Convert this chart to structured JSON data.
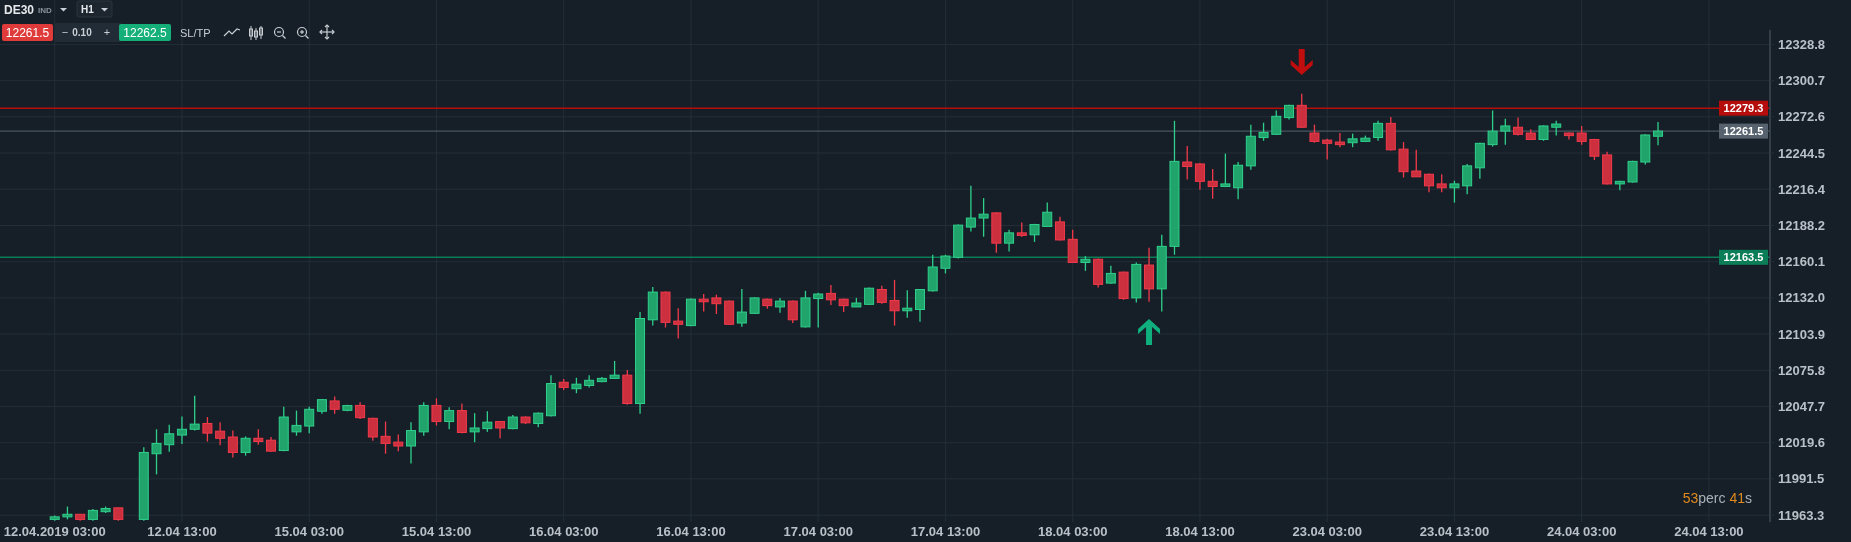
{
  "chart_data": {
    "type": "candlestick",
    "categories": [
      "12.04.2019 03:00",
      null,
      null,
      null,
      null,
      null,
      null,
      null,
      null,
      null,
      "12.04 13:00",
      null,
      null,
      null,
      null,
      null,
      null,
      null,
      null,
      null,
      "15.04 03:00",
      null,
      null,
      null,
      null,
      null,
      null,
      null,
      null,
      null,
      "15.04 13:00",
      null,
      null,
      null,
      null,
      null,
      null,
      null,
      null,
      null,
      "16.04 03:00",
      null,
      null,
      null,
      null,
      null,
      null,
      null,
      null,
      null,
      "16.04 13:00",
      null,
      null,
      null,
      null,
      null,
      null,
      null,
      null,
      null,
      "17.04 03:00",
      null,
      null,
      null,
      null,
      null,
      null,
      null,
      null,
      null,
      "17.04 13:00",
      null,
      null,
      null,
      null,
      null,
      null,
      null,
      null,
      null,
      "18.04 03:00",
      null,
      null,
      null,
      null,
      null,
      null,
      null,
      null,
      null,
      "18.04 13:00",
      null,
      null,
      null,
      null,
      null,
      null,
      null,
      null,
      null,
      "23.04 03:00",
      null,
      null,
      null,
      null,
      null,
      null,
      null,
      null,
      null,
      "23.04 13:00",
      null,
      null,
      null,
      null,
      null,
      null,
      null,
      null,
      null,
      "24.04 03:00",
      null,
      null,
      null,
      null,
      null,
      null,
      null,
      null,
      null,
      "24.04 13:00"
    ],
    "ohlc": [
      [
        11960,
        11963,
        11959,
        11962
      ],
      [
        11962,
        11970,
        11960,
        11964
      ],
      [
        11964,
        11964,
        11959,
        11960
      ],
      [
        11960,
        11968,
        11959,
        11967
      ],
      [
        11966,
        11970,
        11965,
        11968.5
      ],
      [
        11969,
        11969,
        11959,
        11960
      ],
      null,
      [
        11960,
        12016,
        11959,
        12012
      ],
      [
        12011,
        12030,
        11995,
        12019
      ],
      [
        12018,
        12033.5,
        12012.5,
        12026.5
      ],
      [
        12025.5,
        12040,
        12018.5,
        12030
      ],
      [
        12030,
        12056,
        12029,
        12034
      ],
      [
        12034.5,
        12039.5,
        12020.5,
        12027
      ],
      [
        12028.5,
        12035.5,
        12017.5,
        12023
      ],
      [
        12024,
        12029,
        12008,
        12012
      ],
      [
        12012,
        12024.5,
        12009.5,
        12023
      ],
      [
        12023,
        12030,
        12018,
        12020.5
      ],
      [
        12021.5,
        12024,
        12012.5,
        12013
      ],
      [
        12013.5,
        12047.5,
        12013,
        12039.5
      ],
      [
        12028,
        12044.5,
        12025,
        12033
      ],
      [
        12032.5,
        12047.5,
        12027,
        12045.5
      ],
      [
        12044,
        12053.5,
        12042,
        12053
      ],
      [
        12052,
        12055.5,
        12042,
        12045.5
      ],
      [
        12044.7,
        12049,
        12044,
        12048.4
      ],
      [
        12048.5,
        12051,
        12038,
        12039
      ],
      [
        12038.5,
        12039,
        12021,
        12024
      ],
      [
        12024.5,
        12036,
        12011,
        12019
      ],
      [
        12020,
        12026,
        12013,
        12017
      ],
      [
        12017,
        12035.5,
        12003.5,
        12029
      ],
      [
        12028,
        12051,
        12025,
        12048.5
      ],
      [
        12048.5,
        12054,
        12033,
        12036
      ],
      [
        12036,
        12047,
        12030,
        12044.5
      ],
      [
        12044.5,
        12050,
        12027,
        12027.5
      ],
      [
        12028,
        12042.5,
        12020,
        12031
      ],
      [
        12030.5,
        12044,
        12028,
        12035.5
      ],
      [
        12036,
        12036,
        12023,
        12031
      ],
      [
        12030.5,
        12041,
        12030,
        12039.5
      ],
      [
        12039.5,
        12040,
        12034,
        12035
      ],
      [
        12034.5,
        12043,
        12031.5,
        12042.5
      ],
      [
        12040.5,
        12072,
        12040,
        12065.5
      ],
      [
        12066.5,
        12069,
        12060.5,
        12062.5
      ],
      [
        12061.5,
        12070,
        12058,
        12065
      ],
      [
        12064,
        12072,
        12062.5,
        12068
      ],
      [
        12067,
        12070.5,
        12066.5,
        12069.5
      ],
      [
        12069.5,
        12083,
        12069,
        12072
      ],
      [
        12072,
        12076,
        12049,
        12050
      ],
      [
        12050,
        12121,
        12042,
        12116
      ],
      [
        12115,
        12140.5,
        12110.5,
        12136.5
      ],
      [
        12136.5,
        12137,
        12109,
        12113
      ],
      [
        12114,
        12124,
        12100.5,
        12111.5
      ],
      [
        12110.5,
        12131.5,
        12110,
        12131
      ],
      [
        12131,
        12135,
        12121.5,
        12129
      ],
      [
        12132,
        12134.5,
        12119.5,
        12127.5
      ],
      [
        12129.5,
        12130,
        12111,
        12111.5
      ],
      [
        12112.5,
        12139,
        12109.5,
        12121
      ],
      [
        12120,
        12132.5,
        12119.5,
        12132
      ],
      [
        12131,
        12131.5,
        12123.5,
        12126
      ],
      [
        12125,
        12132,
        12120.5,
        12129.5
      ],
      [
        12129.5,
        12130,
        12112.5,
        12115
      ],
      [
        12109.5,
        12137.5,
        12109,
        12132
      ],
      [
        12131.5,
        12136,
        12109,
        12135
      ],
      [
        12135.5,
        12142,
        12126.5,
        12130.5
      ],
      [
        12131,
        12131.5,
        12121,
        12126
      ],
      [
        12125,
        12132,
        12125,
        12128
      ],
      [
        12127,
        12140,
        12126.5,
        12139.5
      ],
      [
        12138.5,
        12141.5,
        12127.5,
        12128.5
      ],
      [
        12130,
        12146,
        12110.5,
        12122
      ],
      [
        12122,
        12138,
        12116.5,
        12124
      ],
      [
        12123,
        12139,
        12113.5,
        12138.5
      ],
      [
        12137.5,
        12165.5,
        12137,
        12156
      ],
      [
        12155,
        12165.5,
        12151,
        12164.5
      ],
      [
        12163.5,
        12189,
        12162.5,
        12188.5
      ],
      [
        12187,
        12219,
        12183.5,
        12194
      ],
      [
        12194,
        12209.5,
        12179.5,
        12197
      ],
      [
        12198,
        12198.5,
        12167,
        12174.5
      ],
      [
        12174.5,
        12185,
        12168,
        12182.5
      ],
      [
        12182.5,
        12190.5,
        12179.5,
        12180.5
      ],
      [
        12181,
        12189.5,
        12175.5,
        12189
      ],
      [
        12187.5,
        12206,
        12187,
        12198.5
      ],
      [
        12191,
        12195,
        12176.5,
        12177
      ],
      [
        12177.5,
        12185,
        12159,
        12159.5
      ],
      [
        12159.5,
        12164.5,
        12153,
        12162
      ],
      [
        12162,
        12162.5,
        12140,
        12142.5
      ],
      [
        12143.5,
        12157,
        12143,
        12151
      ],
      [
        12152,
        12152.5,
        12130.5,
        12131.5
      ],
      [
        12132,
        12159.5,
        12128.5,
        12158
      ],
      [
        12157.5,
        12171,
        12129,
        12139
      ],
      [
        12139,
        12181,
        12121.5,
        12172
      ],
      [
        12172,
        12269.5,
        12165.5,
        12238
      ],
      [
        12237.5,
        12250,
        12224,
        12234
      ],
      [
        12236,
        12236.5,
        12216,
        12222.5
      ],
      [
        12222.5,
        12232,
        12209,
        12218.5
      ],
      [
        12218.5,
        12244,
        12218,
        12220.5
      ],
      [
        12217.5,
        12237.5,
        12208.5,
        12235
      ],
      [
        12234.5,
        12266.5,
        12231.5,
        12257.5
      ],
      [
        12256.5,
        12268,
        12254,
        12260.5
      ],
      [
        12259,
        12277.5,
        12258.5,
        12273
      ],
      [
        12272,
        12282,
        12270.5,
        12281.5
      ],
      [
        12281.5,
        12290.5,
        12264,
        12264.5
      ],
      [
        12260,
        12266.5,
        12252.5,
        12253.5
      ],
      [
        12254.5,
        12255.5,
        12239.5,
        12252
      ],
      [
        12253,
        12260,
        12249,
        12251
      ],
      [
        12252.5,
        12259.5,
        12249,
        12255.5
      ],
      [
        12253.5,
        12258,
        12253,
        12256
      ],
      [
        12256.5,
        12269.5,
        12254,
        12267.5
      ],
      [
        12267.5,
        12272.5,
        12246.5,
        12247
      ],
      [
        12247.5,
        12253,
        12225.5,
        12230
      ],
      [
        12230.5,
        12247,
        12226,
        12226
      ],
      [
        12228,
        12228.5,
        12214,
        12219
      ],
      [
        12220.5,
        12228,
        12214,
        12217.5
      ],
      [
        12217.5,
        12223,
        12206,
        12220.5
      ],
      [
        12219,
        12236,
        12212.5,
        12234.5
      ],
      [
        12233,
        12252.5,
        12224.5,
        12252
      ],
      [
        12251,
        12277.5,
        12249.5,
        12261.5
      ],
      [
        12261.5,
        12271,
        12251,
        12265.5
      ],
      [
        12264.5,
        12272,
        12258,
        12259
      ],
      [
        12260,
        12263,
        12255,
        12255
      ],
      [
        12255,
        12266,
        12254,
        12265.5
      ],
      [
        12264.5,
        12269.5,
        12258,
        12267
      ],
      [
        12260,
        12260.5,
        12255,
        12258
      ],
      [
        12260,
        12265.5,
        12251,
        12253.5
      ],
      [
        12255,
        12255.5,
        12239,
        12242
      ],
      [
        12243,
        12245.5,
        12220,
        12220.5
      ],
      [
        12220.5,
        12223,
        12215.5,
        12222.5
      ],
      [
        12222,
        12238.5,
        12221.5,
        12238
      ],
      [
        12237.5,
        12259,
        12235.5,
        12258.5
      ],
      [
        12257.5,
        12268.5,
        12250.5,
        12261.5
      ],
      null,
      null,
      null,
      null
    ],
    "ylim": [
      11958,
      12340
    ],
    "yticks": [
      11963.3,
      11991.5,
      12019.6,
      12047.7,
      12075.8,
      12103.9,
      {
        "value": 12132,
        "label": "12132.0"
      },
      12160.1,
      12188.2,
      12216.4,
      12244.5,
      12272.6,
      12300.7,
      12328.8
    ],
    "grid": true,
    "ref_lines": [
      {
        "axis": "y",
        "value": 12279.3,
        "label": "12279.3",
        "color": "#b50c0c"
      },
      {
        "axis": "y",
        "value": 12261.5,
        "label": "12261.5",
        "color": "#56636e"
      },
      {
        "axis": "y",
        "value": 12163.5,
        "label": "12163.5",
        "color": "#0b7d57"
      }
    ],
    "annotations": [
      "DE30",
      "IND",
      "H1",
      "12261.5",
      "−",
      "0.10",
      "+",
      "12262.5",
      "SL/TP",
      "53perc 41s"
    ]
  }
}
